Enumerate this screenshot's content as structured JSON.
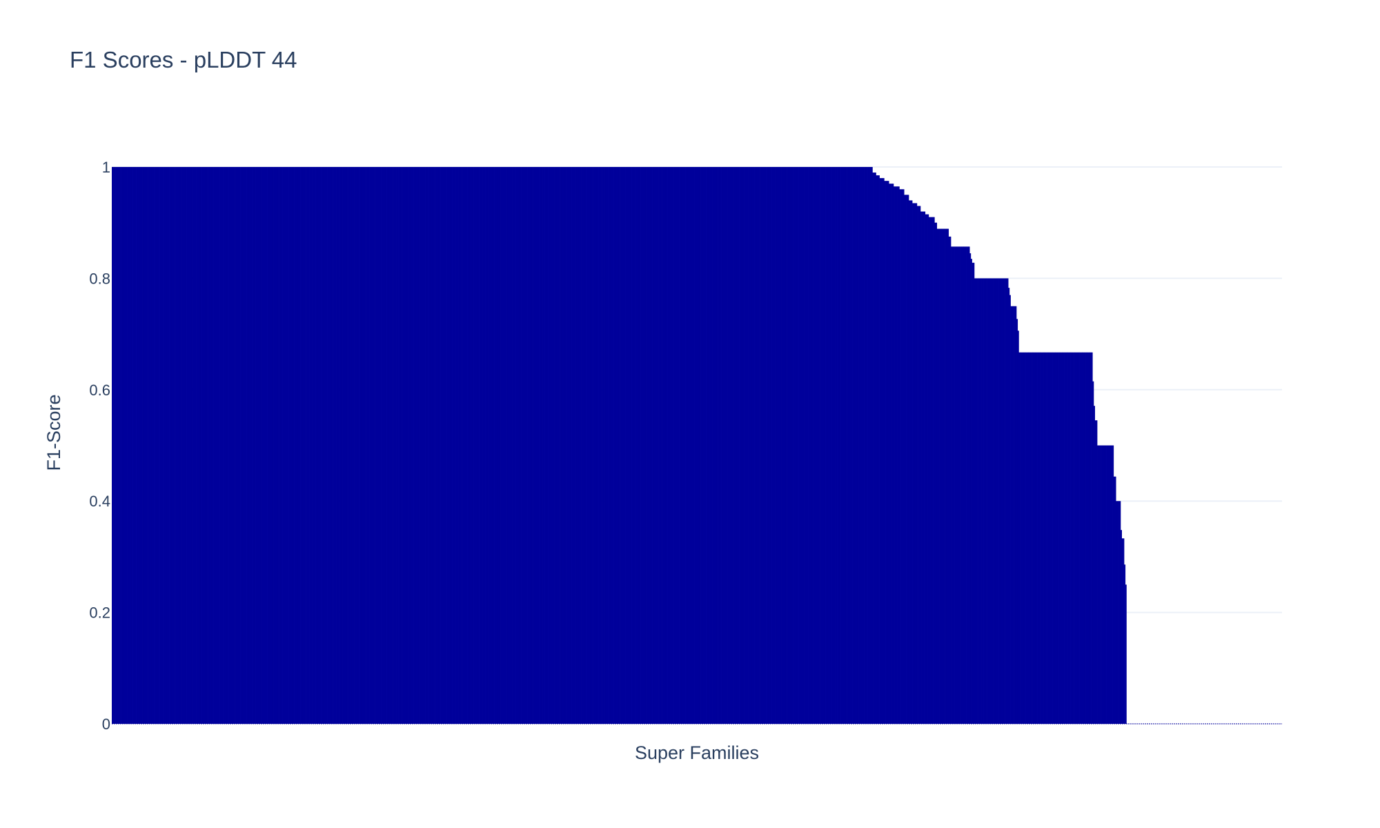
{
  "chart_data": {
    "type": "bar",
    "title": "F1 Scores - pLDDT 44",
    "xlabel": "Super Families",
    "ylabel": "F1-Score",
    "ylim": [
      0,
      1
    ],
    "yticks": [
      "0",
      "0.2",
      "0.4",
      "0.6",
      "0.8",
      "1"
    ],
    "xticks_shown": false,
    "grid": true,
    "bar_color": "#00009b",
    "n_bars": 1000,
    "sorted": "descending",
    "segments": [
      {
        "count": 650,
        "value": 1.0
      },
      {
        "count": 3,
        "value": 0.99
      },
      {
        "count": 3,
        "value": 0.985
      },
      {
        "count": 4,
        "value": 0.98
      },
      {
        "count": 4,
        "value": 0.975
      },
      {
        "count": 4,
        "value": 0.97
      },
      {
        "count": 5,
        "value": 0.965
      },
      {
        "count": 4,
        "value": 0.96
      },
      {
        "count": 4,
        "value": 0.95
      },
      {
        "count": 3,
        "value": 0.94
      },
      {
        "count": 4,
        "value": 0.935
      },
      {
        "count": 3,
        "value": 0.93
      },
      {
        "count": 4,
        "value": 0.92
      },
      {
        "count": 3,
        "value": 0.915
      },
      {
        "count": 5,
        "value": 0.91
      },
      {
        "count": 2,
        "value": 0.9
      },
      {
        "count": 10,
        "value": 0.889
      },
      {
        "count": 2,
        "value": 0.875
      },
      {
        "count": 16,
        "value": 0.857
      },
      {
        "count": 1,
        "value": 0.845
      },
      {
        "count": 1,
        "value": 0.835
      },
      {
        "count": 2,
        "value": 0.828
      },
      {
        "count": 29,
        "value": 0.8
      },
      {
        "count": 1,
        "value": 0.783
      },
      {
        "count": 1,
        "value": 0.77
      },
      {
        "count": 5,
        "value": 0.75
      },
      {
        "count": 1,
        "value": 0.727
      },
      {
        "count": 1,
        "value": 0.706
      },
      {
        "count": 63,
        "value": 0.667
      },
      {
        "count": 1,
        "value": 0.615
      },
      {
        "count": 1,
        "value": 0.571
      },
      {
        "count": 2,
        "value": 0.545
      },
      {
        "count": 14,
        "value": 0.5
      },
      {
        "count": 2,
        "value": 0.444
      },
      {
        "count": 4,
        "value": 0.4
      },
      {
        "count": 1,
        "value": 0.348
      },
      {
        "count": 2,
        "value": 0.333
      },
      {
        "count": 1,
        "value": 0.286
      },
      {
        "count": 1,
        "value": 0.25
      },
      {
        "count": 133,
        "value": 0.0
      }
    ]
  }
}
